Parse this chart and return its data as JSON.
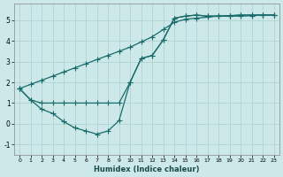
{
  "title": "",
  "xlabel": "Humidex (Indice chaleur)",
  "ylabel": "",
  "background_color": "#cce8e8",
  "grid_color": "#aacfcf",
  "line_color": "#1a6b6b",
  "xlim": [
    -0.5,
    23.5
  ],
  "ylim": [
    -1.5,
    5.8
  ],
  "yticks": [
    -1,
    0,
    1,
    2,
    3,
    4,
    5
  ],
  "xticks": [
    0,
    1,
    2,
    3,
    4,
    5,
    6,
    7,
    8,
    9,
    10,
    11,
    12,
    13,
    14,
    15,
    16,
    17,
    18,
    19,
    20,
    21,
    22,
    23
  ],
  "line1_x": [
    0,
    1,
    2,
    3,
    4,
    5,
    6,
    7,
    8,
    9,
    10,
    11,
    12,
    13,
    14,
    15,
    16,
    17,
    18,
    19,
    20,
    21,
    22,
    23
  ],
  "line1_y": [
    1.7,
    1.15,
    1.0,
    1.0,
    1.0,
    1.0,
    1.0,
    1.0,
    1.0,
    1.0,
    2.0,
    3.15,
    3.3,
    4.05,
    5.1,
    5.2,
    5.25,
    5.2,
    5.2,
    5.22,
    5.25,
    5.25,
    5.25,
    5.25
  ],
  "line2_x": [
    0,
    1,
    2,
    3,
    4,
    5,
    6,
    7,
    8,
    9,
    10,
    11,
    12,
    13,
    14,
    15,
    16,
    17,
    18,
    19,
    20,
    21,
    22,
    23
  ],
  "line2_y": [
    1.7,
    1.15,
    0.7,
    0.5,
    0.1,
    -0.2,
    -0.35,
    -0.5,
    -0.35,
    0.15,
    2.0,
    3.15,
    3.3,
    4.05,
    5.1,
    5.2,
    5.25,
    5.2,
    5.2,
    5.22,
    5.25,
    5.25,
    5.25,
    5.25
  ],
  "line3_x": [
    0,
    1,
    2,
    3,
    4,
    5,
    6,
    7,
    8,
    9,
    10,
    11,
    12,
    13,
    14,
    15,
    16,
    17,
    18,
    19,
    20,
    21,
    22,
    23
  ],
  "line3_y": [
    1.7,
    1.9,
    2.1,
    2.3,
    2.5,
    2.7,
    2.9,
    3.1,
    3.3,
    3.5,
    3.7,
    3.95,
    4.2,
    4.55,
    4.9,
    5.05,
    5.1,
    5.15,
    5.2,
    5.2,
    5.2,
    5.22,
    5.25,
    5.25
  ]
}
